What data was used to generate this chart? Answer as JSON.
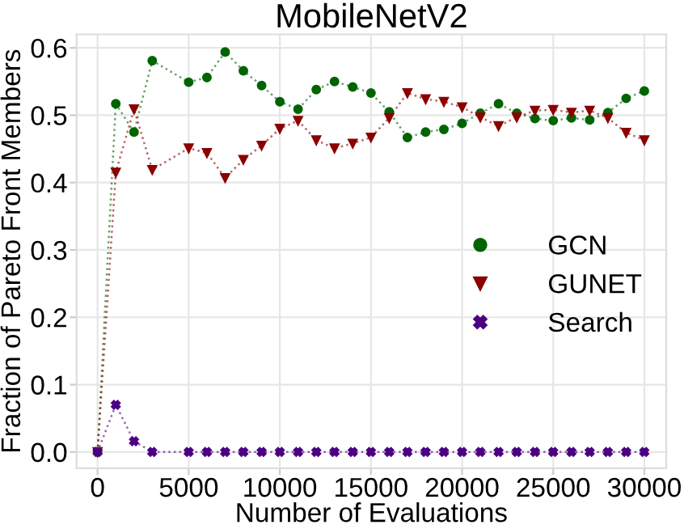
{
  "chart_data": {
    "type": "line",
    "title": "MobileNetV2",
    "xlabel": "Number of Evaluations",
    "ylabel": "Fraction of Pareto Front Members",
    "x": [
      0,
      1000,
      2000,
      3000,
      5000,
      6000,
      7000,
      8000,
      9000,
      10000,
      11000,
      12000,
      13000,
      14000,
      15000,
      16000,
      17000,
      18000,
      19000,
      20000,
      21000,
      22000,
      23000,
      24000,
      25000,
      26000,
      27000,
      28000,
      29000,
      30000
    ],
    "series": [
      {
        "name": "GCN",
        "color": "#006400",
        "marker": "circle",
        "values": [
          0,
          0.517,
          0.475,
          0.581,
          0.549,
          0.556,
          0.594,
          0.566,
          0.544,
          0.52,
          0.509,
          0.538,
          0.55,
          0.542,
          0.533,
          0.505,
          0.467,
          0.475,
          0.479,
          0.488,
          0.503,
          0.517,
          0.503,
          0.495,
          0.492,
          0.496,
          0.493,
          0.504,
          0.525,
          0.536
        ]
      },
      {
        "name": "GUNET",
        "color": "#8b0000",
        "marker": "triangle",
        "values": [
          0,
          0.415,
          0.509,
          0.419,
          0.451,
          0.444,
          0.407,
          0.434,
          0.455,
          0.48,
          0.492,
          0.463,
          0.451,
          0.458,
          0.467,
          0.496,
          0.533,
          0.524,
          0.52,
          0.512,
          0.497,
          0.484,
          0.497,
          0.507,
          0.508,
          0.504,
          0.507,
          0.496,
          0.474,
          0.463
        ]
      },
      {
        "name": "Search",
        "color": "#4b0082",
        "marker": "cross",
        "values": [
          0,
          0.07,
          0.016,
          0,
          0,
          0,
          0,
          0,
          0,
          0,
          0,
          0,
          0,
          0,
          0,
          0,
          0,
          0,
          0,
          0,
          0,
          0,
          0,
          0,
          0,
          0,
          0,
          0,
          0,
          0
        ]
      }
    ],
    "xlim": [
      -1150,
      31200
    ],
    "ylim": [
      -0.024,
      0.62
    ],
    "xticks": [
      0,
      5000,
      10000,
      15000,
      20000,
      25000,
      30000
    ],
    "yticks": [
      {
        "value": 0,
        "label": "0.0"
      },
      {
        "value": 0.1,
        "label": "0.1"
      },
      {
        "value": 0.2,
        "label": "0.2"
      },
      {
        "value": 0.3,
        "label": "0.3"
      },
      {
        "value": 0.4,
        "label": "0.4"
      },
      {
        "value": 0.5,
        "label": "0.5"
      },
      {
        "value": 0.6,
        "label": "0.6"
      }
    ],
    "grid": true,
    "legend": "right",
    "line_style": "dotted"
  }
}
